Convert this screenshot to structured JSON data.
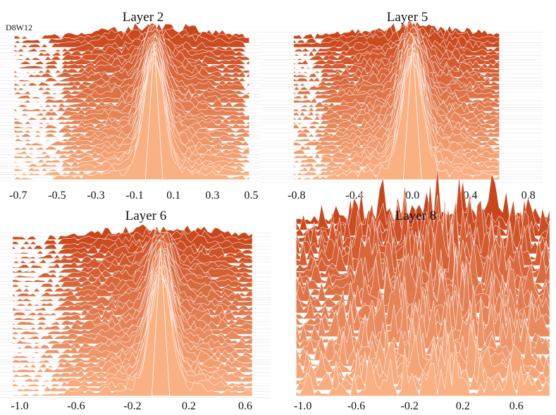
{
  "figure_tag": "D8W12",
  "colors": {
    "top": "#c9461c",
    "bottom": "#f9b083",
    "line": "#ffffff"
  },
  "chart_data": [
    {
      "type": "ridgeline",
      "title": "Layer 2",
      "xlim": [
        -0.75,
        0.52
      ],
      "ticks": [
        "-0.7",
        "-0.5",
        "-0.3",
        "-0.1",
        "0.1",
        "0.3",
        "0.5"
      ],
      "tick_values": [
        -0.7,
        -0.5,
        -0.3,
        -0.1,
        0.1,
        0.3,
        0.5
      ],
      "ridges": 34,
      "data_range": [
        -0.72,
        0.49
      ],
      "peak_center": 0.0,
      "peak_width": 0.05,
      "spread": 0.28,
      "spikiness": 0.25
    },
    {
      "type": "ridgeline",
      "title": "Layer 5",
      "xlim": [
        -0.95,
        0.85
      ],
      "ticks": [
        "-0.8",
        "-0.4",
        "0.0",
        "0.4",
        "0.8"
      ],
      "tick_values": [
        -0.8,
        -0.4,
        0.0,
        0.4,
        0.8
      ],
      "ridges": 34,
      "data_range": [
        -0.82,
        0.6
      ],
      "peak_center": 0.0,
      "peak_width": 0.07,
      "spread": 0.38,
      "spikiness": 0.3
    },
    {
      "type": "ridgeline",
      "title": "Layer 6",
      "xlim": [
        -1.05,
        0.72
      ],
      "ticks": [
        "-1.0",
        "-0.6",
        "-0.2",
        "0.2",
        "0.6"
      ],
      "tick_values": [
        -1.0,
        -0.6,
        -0.2,
        0.2,
        0.6
      ],
      "ridges": 34,
      "data_range": [
        -1.05,
        0.65
      ],
      "peak_center": 0.0,
      "peak_width": 0.07,
      "spread": 0.42,
      "spikiness": 0.3
    },
    {
      "type": "ridgeline",
      "title": "Layer 8",
      "xlim": [
        -1.12,
        0.85
      ],
      "ticks": [
        "-1.0",
        "-0.6",
        "-0.2",
        "0.2",
        "0.6"
      ],
      "tick_values": [
        -1.0,
        -0.6,
        -0.2,
        0.2,
        0.6
      ],
      "ridges": 30,
      "data_range": [
        -1.05,
        0.85
      ],
      "peak_center": 0.05,
      "peak_width": 0.2,
      "spread": 0.6,
      "spikiness": 1.0
    }
  ]
}
